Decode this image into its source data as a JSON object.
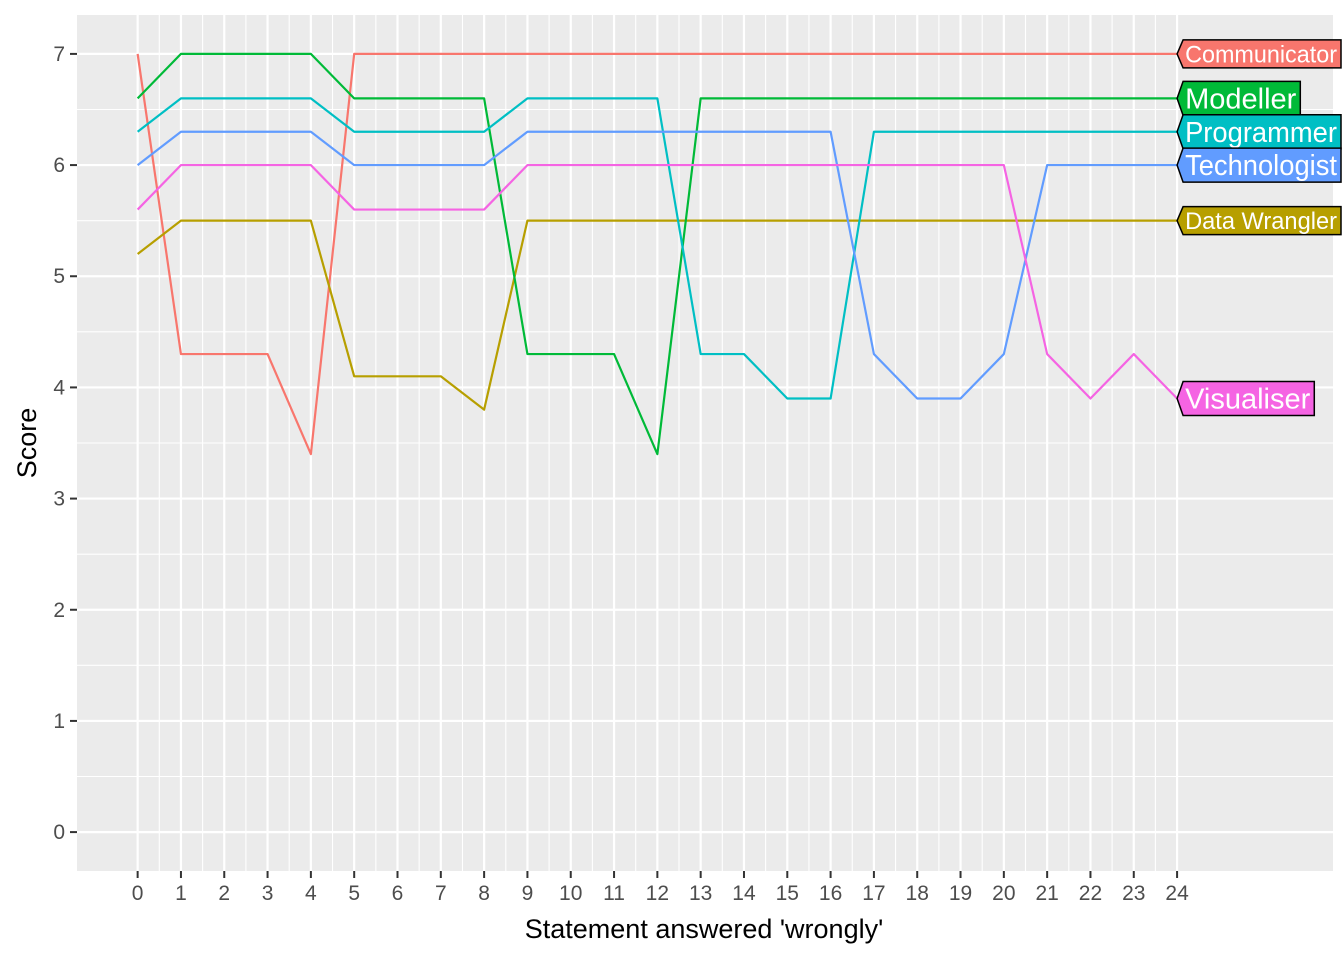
{
  "chart_data": {
    "type": "line",
    "xlabel": "Statement answered 'wrongly'",
    "ylabel": "Score",
    "xlim": [
      -1.4,
      27.6
    ],
    "ylim": [
      -0.35,
      7.35
    ],
    "x_ticks": [
      0,
      1,
      2,
      3,
      4,
      5,
      6,
      7,
      8,
      9,
      10,
      11,
      12,
      13,
      14,
      15,
      16,
      17,
      18,
      19,
      20,
      21,
      22,
      23,
      24
    ],
    "y_ticks": [
      0,
      1,
      2,
      3,
      4,
      5,
      6,
      7
    ],
    "grid": true,
    "legend": "labels at line ends",
    "x": [
      0,
      1,
      2,
      3,
      4,
      5,
      6,
      7,
      8,
      9,
      10,
      11,
      12,
      13,
      14,
      15,
      16,
      17,
      18,
      19,
      20,
      21,
      22,
      23,
      24
    ],
    "series": [
      {
        "name": "Communicator",
        "color": "#F8766D",
        "values": [
          7,
          4.3,
          4.3,
          4.3,
          3.4,
          7,
          7,
          7,
          7,
          7,
          7,
          7,
          7,
          7,
          7,
          7,
          7,
          7,
          7,
          7,
          7,
          7,
          7,
          7,
          7
        ]
      },
      {
        "name": "Data Wrangler",
        "color": "#B79F00",
        "values": [
          5.2,
          5.5,
          5.5,
          5.5,
          5.5,
          4.1,
          4.1,
          4.1,
          3.8,
          5.5,
          5.5,
          5.5,
          5.5,
          5.5,
          5.5,
          5.5,
          5.5,
          5.5,
          5.5,
          5.5,
          5.5,
          5.5,
          5.5,
          5.5,
          5.5
        ]
      },
      {
        "name": "Modeller",
        "color": "#00BA38",
        "values": [
          6.6,
          7,
          7,
          7,
          7,
          6.6,
          6.6,
          6.6,
          6.6,
          4.3,
          4.3,
          4.3,
          3.4,
          6.6,
          6.6,
          6.6,
          6.6,
          6.6,
          6.6,
          6.6,
          6.6,
          6.6,
          6.6,
          6.6,
          6.6
        ]
      },
      {
        "name": "Programmer",
        "color": "#00BFC4",
        "values": [
          6.3,
          6.6,
          6.6,
          6.6,
          6.6,
          6.3,
          6.3,
          6.3,
          6.3,
          6.6,
          6.6,
          6.6,
          6.6,
          4.3,
          4.3,
          3.9,
          3.9,
          6.3,
          6.3,
          6.3,
          6.3,
          6.3,
          6.3,
          6.3,
          6.3
        ]
      },
      {
        "name": "Technologist",
        "color": "#619CFF",
        "values": [
          6,
          6.3,
          6.3,
          6.3,
          6.3,
          6,
          6,
          6,
          6,
          6.3,
          6.3,
          6.3,
          6.3,
          6.3,
          6.3,
          6.3,
          6.3,
          4.3,
          3.9,
          3.9,
          4.3,
          6,
          6,
          6,
          6
        ]
      },
      {
        "name": "Visualiser",
        "color": "#F564E3",
        "values": [
          5.6,
          6,
          6,
          6,
          6,
          5.6,
          5.6,
          5.6,
          5.6,
          6,
          6,
          6,
          6,
          6,
          6,
          6,
          6,
          6,
          6,
          6,
          6,
          4.3,
          3.9,
          4.3,
          3.9
        ]
      }
    ],
    "labels": [
      {
        "series": "Communicator",
        "text": "Communicator",
        "size": "small"
      },
      {
        "series": "Modeller",
        "text": "Modeller",
        "size": "large"
      },
      {
        "series": "Programmer",
        "text": "Programmer",
        "size": "large"
      },
      {
        "series": "Technologist",
        "text": "Technologist",
        "size": "large"
      },
      {
        "series": "Data Wrangler",
        "text": "Data Wrangler",
        "size": "small"
      },
      {
        "series": "Visualiser",
        "text": "Visualiser",
        "size": "large"
      }
    ]
  }
}
